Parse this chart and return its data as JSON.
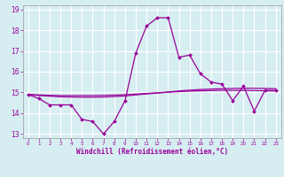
{
  "xlabel": "Windchill (Refroidissement éolien,°C)",
  "x_values": [
    0,
    1,
    2,
    3,
    4,
    5,
    6,
    7,
    8,
    9,
    10,
    11,
    12,
    13,
    14,
    15,
    16,
    17,
    18,
    19,
    20,
    21,
    22,
    23
  ],
  "line1_y": [
    14.9,
    14.7,
    14.4,
    14.4,
    14.4,
    13.7,
    13.6,
    13.0,
    13.6,
    14.6,
    16.9,
    18.2,
    18.6,
    18.6,
    16.7,
    16.8,
    15.9,
    15.5,
    15.4,
    14.6,
    15.3,
    14.1,
    15.1,
    15.1
  ],
  "line2_y": [
    14.9,
    14.85,
    14.82,
    14.79,
    14.78,
    14.77,
    14.77,
    14.78,
    14.8,
    14.83,
    14.88,
    14.93,
    14.97,
    15.02,
    15.07,
    15.11,
    15.14,
    15.16,
    15.18,
    15.19,
    15.2,
    15.2,
    15.19,
    15.18
  ],
  "line3_y": [
    14.9,
    14.88,
    14.86,
    14.85,
    14.85,
    14.85,
    14.85,
    14.86,
    14.87,
    14.89,
    14.92,
    14.95,
    14.98,
    15.01,
    15.04,
    15.06,
    15.08,
    15.09,
    15.1,
    15.1,
    15.1,
    15.09,
    15.08,
    15.07
  ],
  "line_color": "#990099",
  "bg_color": "#d6eef2",
  "grid_color": "#ffffff",
  "ylim": [
    12.8,
    19.2
  ],
  "yticks": [
    13,
    14,
    15,
    16,
    17,
    18,
    19
  ],
  "xlim": [
    -0.5,
    23.5
  ],
  "figsize": [
    3.2,
    2.0
  ],
  "dpi": 100
}
